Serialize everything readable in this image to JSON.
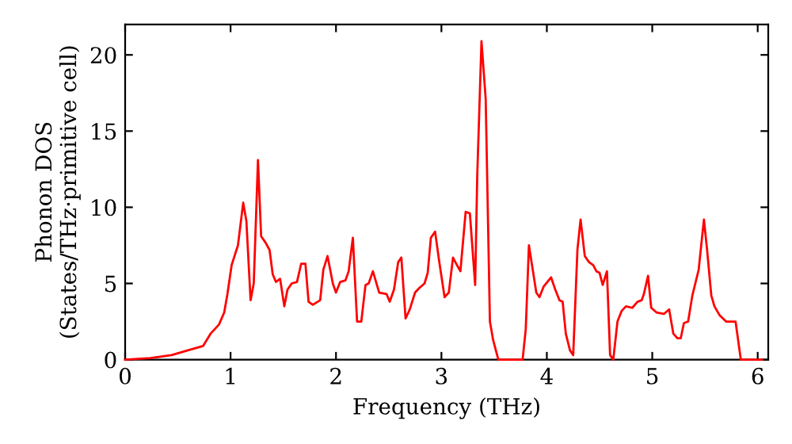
{
  "chart_data": {
    "type": "line",
    "xlabel": "Frequency (THz)",
    "ylabel": "Phonon DOS\n(States/THz·primitive cell)",
    "x": [
      0,
      0.24,
      0.44,
      0.64,
      0.74,
      0.81,
      0.89,
      0.94,
      0.97,
      1.01,
      1.07,
      1.12,
      1.15,
      1.19,
      1.22,
      1.26,
      1.29,
      1.33,
      1.37,
      1.4,
      1.43,
      1.47,
      1.51,
      1.54,
      1.58,
      1.63,
      1.67,
      1.71,
      1.74,
      1.78,
      1.85,
      1.88,
      1.92,
      1.97,
      2.0,
      2.04,
      2.09,
      2.12,
      2.16,
      2.2,
      2.24,
      2.28,
      2.31,
      2.35,
      2.41,
      2.48,
      2.51,
      2.55,
      2.59,
      2.62,
      2.66,
      2.7,
      2.75,
      2.79,
      2.84,
      2.87,
      2.9,
      2.94,
      2.98,
      3.03,
      3.07,
      3.11,
      3.14,
      3.18,
      3.23,
      3.27,
      3.32,
      3.34,
      3.38,
      3.42,
      3.46,
      3.49,
      3.54,
      3.77,
      3.8,
      3.83,
      3.9,
      3.93,
      3.97,
      4.04,
      4.08,
      4.12,
      4.15,
      4.18,
      4.22,
      4.25,
      4.29,
      4.32,
      4.36,
      4.4,
      4.44,
      4.47,
      4.5,
      4.53,
      4.57,
      4.6,
      4.63,
      4.67,
      4.71,
      4.75,
      4.81,
      4.86,
      4.9,
      4.92,
      4.96,
      4.99,
      5.04,
      5.11,
      5.16,
      5.2,
      5.24,
      5.27,
      5.3,
      5.34,
      5.38,
      5.44,
      5.49,
      5.52,
      5.56,
      5.59,
      5.64,
      5.7,
      5.76,
      5.79,
      5.84,
      6.04
    ],
    "series": [
      {
        "color": "#ff0000",
        "values": [
          0,
          0.1,
          0.3,
          0.7,
          0.9,
          1.7,
          2.3,
          3.1,
          4.3,
          6.2,
          7.5,
          10.3,
          9.1,
          3.9,
          5.0,
          13.1,
          8.1,
          7.7,
          7.2,
          5.6,
          5.1,
          5.3,
          3.5,
          4.6,
          5.0,
          5.1,
          6.3,
          6.3,
          3.8,
          3.6,
          3.9,
          5.9,
          6.8,
          5.0,
          4.4,
          5.1,
          5.2,
          5.8,
          8.0,
          2.5,
          2.5,
          4.9,
          5.0,
          5.8,
          4.4,
          4.3,
          3.8,
          4.6,
          6.4,
          6.7,
          2.7,
          3.3,
          4.4,
          4.7,
          5.0,
          5.7,
          8.0,
          8.4,
          6.4,
          4.1,
          4.4,
          6.7,
          6.3,
          5.8,
          9.7,
          9.6,
          4.9,
          12.1,
          20.9,
          17.1,
          2.5,
          1.3,
          0,
          0,
          2.0,
          7.5,
          4.4,
          4.1,
          4.8,
          5.4,
          4.6,
          3.9,
          3.8,
          1.7,
          0.6,
          0.3,
          7.2,
          9.2,
          6.8,
          6.4,
          6.2,
          5.8,
          5.7,
          4.9,
          5.8,
          0.3,
          0,
          2.5,
          3.2,
          3.5,
          3.4,
          3.8,
          3.9,
          4.3,
          5.5,
          3.4,
          3.1,
          3.0,
          3.3,
          1.7,
          1.4,
          1.4,
          2.4,
          2.5,
          4.2,
          5.9,
          9.2,
          7.2,
          4.2,
          3.5,
          2.9,
          2.5,
          2.5,
          2.5,
          0,
          0
        ]
      }
    ],
    "xlim": [
      0,
      6.1
    ],
    "ylim": [
      0,
      22
    ],
    "xticks": [
      0,
      1,
      2,
      3,
      4,
      5,
      6
    ],
    "yticks": [
      0,
      5,
      10,
      15,
      20
    ],
    "grid": false,
    "legend": false,
    "marker": "none",
    "line_style": "solid"
  }
}
